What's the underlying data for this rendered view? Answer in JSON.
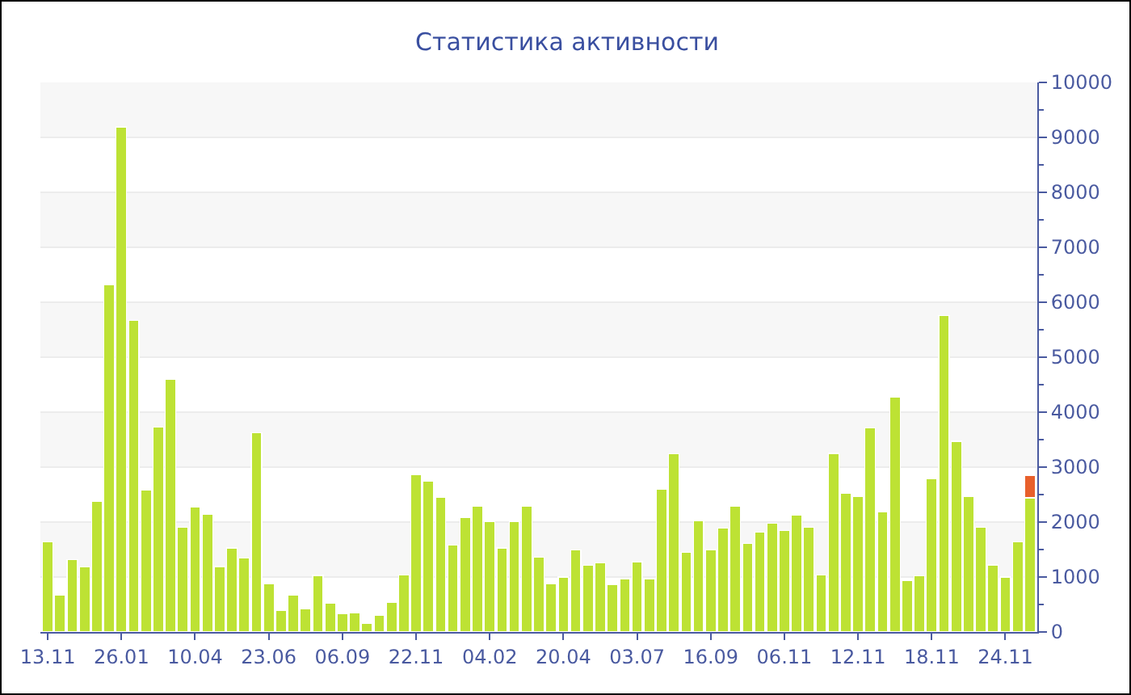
{
  "chart_data": {
    "type": "bar",
    "title": "Статистика активности",
    "stacked": true,
    "categories": [
      "13.11",
      null,
      null,
      null,
      null,
      null,
      "26.01",
      null,
      null,
      null,
      null,
      null,
      "10.04",
      null,
      null,
      null,
      null,
      null,
      "23.06",
      null,
      null,
      null,
      null,
      null,
      "06.09",
      null,
      null,
      null,
      null,
      null,
      "22.11",
      null,
      null,
      null,
      null,
      null,
      "04.02",
      null,
      null,
      null,
      null,
      null,
      "20.04",
      null,
      null,
      null,
      null,
      null,
      "03.07",
      null,
      null,
      null,
      null,
      null,
      "16.09",
      null,
      null,
      null,
      null,
      null,
      "06.11",
      null,
      null,
      null,
      null,
      null,
      "12.11",
      null,
      null,
      null,
      null,
      null,
      "18.11",
      null,
      null,
      null,
      null,
      null,
      "24.11",
      null,
      null
    ],
    "series": [
      {
        "color": "#bde234",
        "values": [
          1640,
          670,
          1320,
          1180,
          2370,
          6320,
          9190,
          5670,
          2580,
          3730,
          4590,
          1910,
          2280,
          2140,
          1190,
          1530,
          1350,
          3630,
          880,
          390,
          670,
          420,
          1030,
          530,
          330,
          350,
          160,
          300,
          540,
          1040,
          2860,
          2750,
          2450,
          1580,
          2080,
          2290,
          2010,
          1530,
          2010,
          2290,
          1360,
          870,
          1000,
          1490,
          1210,
          1260,
          860,
          970,
          1280,
          970,
          2590,
          3240,
          1450,
          2030,
          1500,
          1890,
          2290,
          1610,
          1820,
          1980,
          1850,
          2130,
          1910,
          1040,
          3250,
          2520,
          2470,
          3710,
          2190,
          4270,
          940,
          1020,
          2790,
          5760,
          3470,
          2470,
          1910,
          1220,
          1000,
          1640,
          2440
        ]
      },
      {
        "color": "#e8602c",
        "values": [
          null,
          null,
          null,
          null,
          null,
          null,
          null,
          null,
          null,
          null,
          null,
          null,
          null,
          null,
          null,
          null,
          null,
          null,
          null,
          null,
          null,
          null,
          null,
          null,
          null,
          null,
          null,
          null,
          null,
          null,
          null,
          null,
          null,
          null,
          null,
          null,
          null,
          null,
          null,
          null,
          null,
          null,
          null,
          null,
          null,
          null,
          null,
          null,
          null,
          null,
          null,
          null,
          null,
          null,
          null,
          null,
          null,
          null,
          null,
          null,
          null,
          null,
          null,
          null,
          null,
          null,
          null,
          null,
          null,
          null,
          null,
          null,
          null,
          null,
          null,
          null,
          null,
          null,
          null,
          null,
          400
        ]
      }
    ],
    "ylim": [
      0,
      10000
    ],
    "yticks": [
      0,
      1000,
      2000,
      3000,
      4000,
      5000,
      6000,
      7000,
      8000,
      9000,
      10000
    ],
    "grid": "y"
  }
}
